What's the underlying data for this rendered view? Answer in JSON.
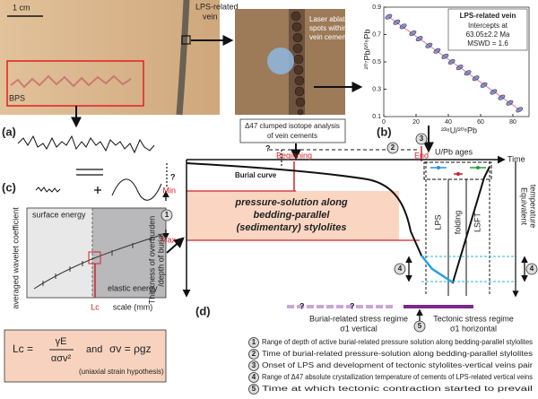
{
  "photos": {
    "scale": "1 cm",
    "vein": [
      "LPS-related",
      "vein"
    ],
    "bps": "BPS",
    "spots": [
      "Laser ablation",
      "spots within",
      "vein cements"
    ]
  },
  "chart_data": {
    "type": "scatter",
    "title": "LPS-related vein",
    "annotations": [
      "Intercepts at",
      "63.05±2.2 Ma",
      "MSWD = 1.6"
    ],
    "x_label": "²³⁸U/²⁰⁶Pb",
    "y_label": "²⁰⁷Pb/²⁰⁶Pb",
    "color": "#5b63b5",
    "x": [
      3,
      8,
      12,
      18,
      22,
      28,
      33,
      38,
      42,
      47,
      52,
      57,
      62,
      68,
      73,
      78,
      84
    ],
    "y": [
      0.83,
      0.79,
      0.76,
      0.71,
      0.67,
      0.62,
      0.58,
      0.54,
      0.5,
      0.46,
      0.42,
      0.38,
      0.33,
      0.28,
      0.24,
      0.2,
      0.15
    ],
    "xlim": [
      0,
      90
    ],
    "ylim": [
      0.1,
      0.9
    ],
    "xticks": [
      0,
      20,
      40,
      60,
      80
    ],
    "yticks": [
      0.9,
      0.7,
      0.5,
      0.3,
      0.1
    ]
  },
  "clumped": [
    "Δ47 clumped isotope analysis",
    "of vein cements"
  ],
  "panel_labels": {
    "a": "(a)",
    "b": "(b)",
    "c": "(c)",
    "d": "(d)"
  },
  "uranium": "U/Pb ages",
  "panel_c": {
    "surface": "surface energy",
    "elastic": "elastic energy",
    "y_label": "averaged wavelet coefficient",
    "x_label": "scale (mm)",
    "lc": "Lc"
  },
  "formula": {
    "lhs": "Lc =",
    "num": "γE",
    "den": "ασv²",
    "and": "and",
    "sigma": "σv = ρgz",
    "note": "(uniaxial strain hypothesis)"
  },
  "panel_d": {
    "time": "Time",
    "beginning": "Beginning",
    "end": "End",
    "question": "?",
    "burial_curve": "Burial curve",
    "min": "Min",
    "max": "Max",
    "pressure": [
      "pressure-solution along",
      "bedding-parallel",
      "(sedimentary) stylolites"
    ],
    "lps": "LPS",
    "folding": "folding",
    "lsft": "LSFT",
    "temperature": [
      "Equivalent",
      "temperature"
    ],
    "y_label": [
      "Thickness of overburden",
      "/depth of burial"
    ],
    "burial_regime": [
      "Burial-related stress regime",
      "σ1 vertical"
    ],
    "tectonic_regime": [
      "Tectonic stress regime",
      "σ1 horizontal"
    ]
  },
  "legend": [
    {
      "number": "1",
      "text": "Range of depth of active burial-related pressure solution along bedding-parallel stylolites"
    },
    {
      "number": "2",
      "text": "Time of burial-related pressure-solution along bedding-parallel stylolites"
    },
    {
      "number": "3",
      "text": "Onset of LPS and development of tectonic stylolites-vertical veins pair"
    },
    {
      "number": "4",
      "text": "Range of Δ47 absolute crystallization temperature of cements of LPS-related vertical veins"
    },
    {
      "number": "5",
      "text": "Time at which tectonic contraction started to prevail"
    }
  ]
}
